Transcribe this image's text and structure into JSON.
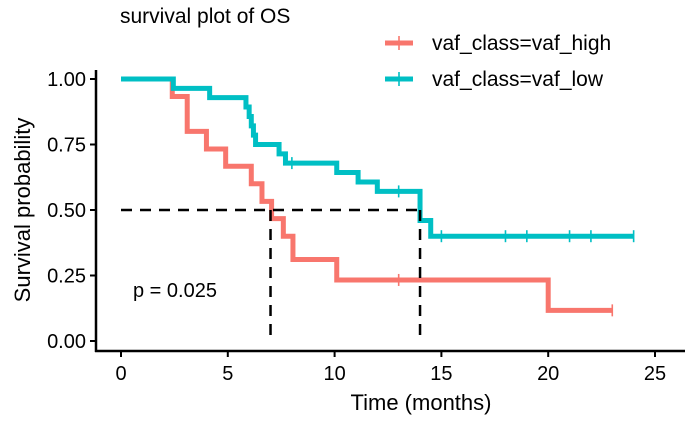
{
  "chart_data": {
    "type": "line",
    "subtype": "kaplan-meier step",
    "title": "survival plot of OS",
    "xlabel": "Time (months)",
    "ylabel": "Survival probability",
    "xlim": [
      0,
      25
    ],
    "ylim": [
      0,
      1
    ],
    "xticks": [
      "0",
      "5",
      "10",
      "15",
      "20",
      "25"
    ],
    "xtick_values": [
      0,
      5,
      10,
      15,
      20,
      25
    ],
    "yticks": [
      "0.00",
      "0.25",
      "0.50",
      "0.75",
      "1.00"
    ],
    "ytick_values": [
      0,
      0.25,
      0.5,
      0.75,
      1.0
    ],
    "grid": false,
    "legend_position": "top-right",
    "annotation": "p = 0.025",
    "median_line_y": 0.5,
    "median_times": [
      7,
      14
    ],
    "series": [
      {
        "name": "vaf_class=vaf_high",
        "color": "#F8766D",
        "end_time": 23,
        "steps": [
          [
            0,
            1.0
          ],
          [
            2.4,
            0.933
          ],
          [
            3.1,
            0.8
          ],
          [
            4.0,
            0.733
          ],
          [
            4.9,
            0.667
          ],
          [
            6.1,
            0.6
          ],
          [
            6.6,
            0.533
          ],
          [
            7.05,
            0.467
          ],
          [
            7.6,
            0.4
          ],
          [
            8.05,
            0.311
          ],
          [
            10.1,
            0.233
          ],
          [
            20.0,
            0.117
          ]
        ],
        "censored": [
          13.0,
          23.0
        ]
      },
      {
        "name": "vaf_class=vaf_low",
        "color": "#00BFC4",
        "end_time": 24,
        "steps": [
          [
            0,
            1.0
          ],
          [
            2.45,
            0.964
          ],
          [
            4.15,
            0.929
          ],
          [
            5.85,
            0.893
          ],
          [
            6.0,
            0.857
          ],
          [
            6.1,
            0.821
          ],
          [
            6.2,
            0.786
          ],
          [
            6.3,
            0.75
          ],
          [
            7.4,
            0.714
          ],
          [
            7.7,
            0.679
          ],
          [
            10.1,
            0.643
          ],
          [
            11.1,
            0.607
          ],
          [
            12.0,
            0.571
          ],
          [
            14.0,
            0.46
          ],
          [
            14.5,
            0.4
          ]
        ],
        "censored": [
          8.0,
          13.0,
          15.0,
          18.0,
          19.0,
          21.0,
          22.0,
          24.0
        ]
      }
    ]
  }
}
